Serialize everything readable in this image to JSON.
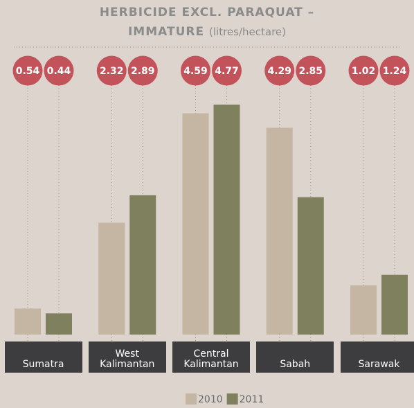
{
  "chart_data": {
    "type": "bar",
    "title_lines": [
      "HERBICIDE EXCL. PARAQUAT –",
      "IMMATURE"
    ],
    "subtitle": "(litres/hectare)",
    "categories": [
      "Sumatra",
      "West Kalimantan",
      "Central Kalimantan",
      "Sabah",
      "Sarawak"
    ],
    "series": [
      {
        "name": "2010",
        "color": "#c4b6a3",
        "values": [
          0.54,
          2.32,
          4.59,
          4.29,
          1.02
        ]
      },
      {
        "name": "2011",
        "color": "#7e805e",
        "values": [
          0.44,
          2.89,
          4.77,
          2.85,
          1.24
        ]
      }
    ],
    "label_color": "#c3535b"
  }
}
